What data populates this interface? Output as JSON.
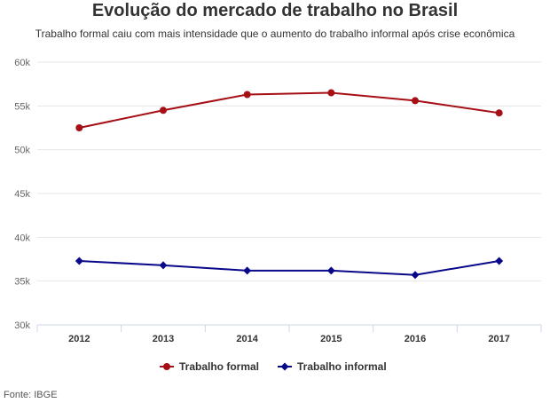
{
  "chart_data": {
    "type": "line",
    "title": "Evolução do mercado de trabalho no Brasil",
    "subtitle": "Trabalho formal caiu com mais intensidade que o aumento do trabalho informal após crise econômica",
    "categories": [
      "2012",
      "2013",
      "2014",
      "2015",
      "2016",
      "2017"
    ],
    "series": [
      {
        "name": "Trabalho formal",
        "color": "#a50f15",
        "marker": "circle",
        "values": [
          52500,
          54500,
          56300,
          56500,
          55600,
          54200
        ]
      },
      {
        "name": "Trabalho informal",
        "color": "#08088a",
        "marker": "diamond",
        "values": [
          37300,
          36800,
          36200,
          36200,
          35700,
          37300
        ]
      }
    ],
    "ylim": [
      30000,
      60000
    ],
    "yticks": [
      30000,
      35000,
      40000,
      45000,
      50000,
      55000,
      60000
    ],
    "ytick_labels": [
      "30k",
      "35k",
      "40k",
      "45k",
      "50k",
      "55k",
      "60k"
    ],
    "xlabel": "",
    "ylabel": "",
    "grid": true,
    "legend_position": "bottom-center"
  },
  "source": "Fonte: IBGE"
}
